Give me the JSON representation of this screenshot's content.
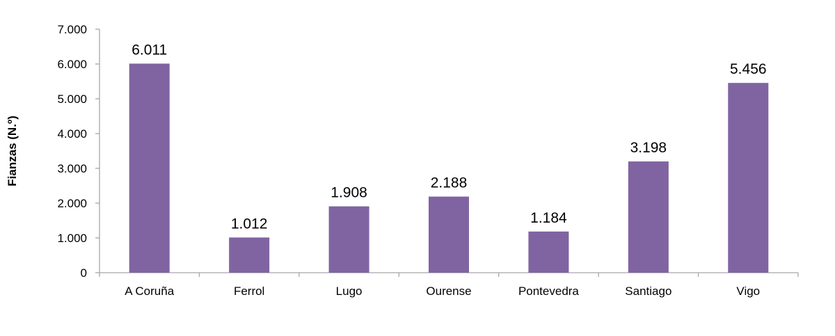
{
  "chart_data": {
    "type": "bar",
    "title": "",
    "xlabel": "",
    "ylabel": "Fianzas (N.º)",
    "categories": [
      "A Coruña",
      "Ferrol",
      "Lugo",
      "Ourense",
      "Pontevedra",
      "Santiago",
      "Vigo"
    ],
    "values": [
      6011,
      1012,
      1908,
      2188,
      1184,
      3198,
      5456
    ],
    "data_labels": [
      "6.011",
      "1.012",
      "1.908",
      "2.188",
      "1.184",
      "3.198",
      "5.456"
    ],
    "ylim": [
      0,
      7000
    ],
    "yticks": [
      0,
      1000,
      2000,
      3000,
      4000,
      5000,
      6000,
      7000
    ],
    "ytick_labels": [
      "0",
      "1.000",
      "2.000",
      "3.000",
      "4.000",
      "5.000",
      "6.000",
      "7.000"
    ],
    "grid": false,
    "legend": "none",
    "colors": {
      "bar": "#8064a2",
      "axis": "#a6a6a6",
      "text": "#000000"
    }
  }
}
